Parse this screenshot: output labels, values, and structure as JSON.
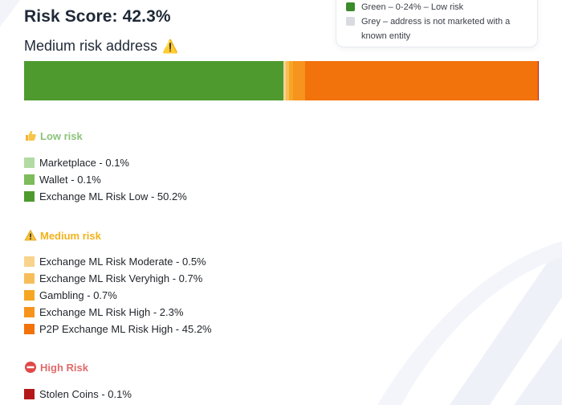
{
  "score": {
    "label": "Risk Score: 42.3%"
  },
  "subtitle": {
    "text": "Medium risk address",
    "icon": "warning-icon"
  },
  "legend": [
    {
      "text": "Green – 0-24% – Low risk",
      "color": "#3b8a2c"
    },
    {
      "text": "Grey – address is not marketed with a known entity",
      "color": "#d9dbe0"
    }
  ],
  "risk_bar": [
    {
      "label": "Exchange ML Risk Low",
      "percent": 50.2,
      "color": "#4e9a2f"
    },
    {
      "label": "Exchange ML Risk Moderate",
      "percent": 0.5,
      "color": "#f8d38c"
    },
    {
      "label": "Exchange ML Risk Veryhigh",
      "percent": 0.7,
      "color": "#f7bd5a"
    },
    {
      "label": "Gambling",
      "percent": 0.7,
      "color": "#f6a623"
    },
    {
      "label": "Exchange ML Risk High",
      "percent": 2.3,
      "color": "#f7941d"
    },
    {
      "label": "P2P Exchange ML Risk High",
      "percent": 45.2,
      "color": "#f2720c"
    },
    {
      "label": "Stolen Coins",
      "percent": 0.1,
      "color": "#b31919"
    }
  ],
  "sections": {
    "low": {
      "title": "Low risk",
      "icon": "thumbs-up-icon",
      "color": "#8cc37a",
      "items": [
        {
          "label": "Marketplace - 0.1%",
          "color": "#b2dba3"
        },
        {
          "label": "Wallet - 0.1%",
          "color": "#7dbb5b"
        },
        {
          "label": "Exchange ML Risk Low - 50.2%",
          "color": "#4e9a2f"
        }
      ]
    },
    "medium": {
      "title": "Medium risk",
      "icon": "warning-icon",
      "color": "#f2b21b",
      "items": [
        {
          "label": "Exchange ML Risk Moderate - 0.5%",
          "color": "#f8d38c"
        },
        {
          "label": "Exchange ML Risk Veryhigh - 0.7%",
          "color": "#f7bd5a"
        },
        {
          "label": "Gambling - 0.7%",
          "color": "#f6a623"
        },
        {
          "label": "Exchange ML Risk High - 2.3%",
          "color": "#f7941d"
        },
        {
          "label": "P2P Exchange ML Risk High - 45.2%",
          "color": "#f2720c"
        }
      ]
    },
    "high": {
      "title": "High Risk",
      "icon": "no-entry-icon",
      "color": "#e06b6b",
      "items": [
        {
          "label": "Stolen Coins - 0.1%",
          "color": "#b31919"
        }
      ]
    }
  }
}
